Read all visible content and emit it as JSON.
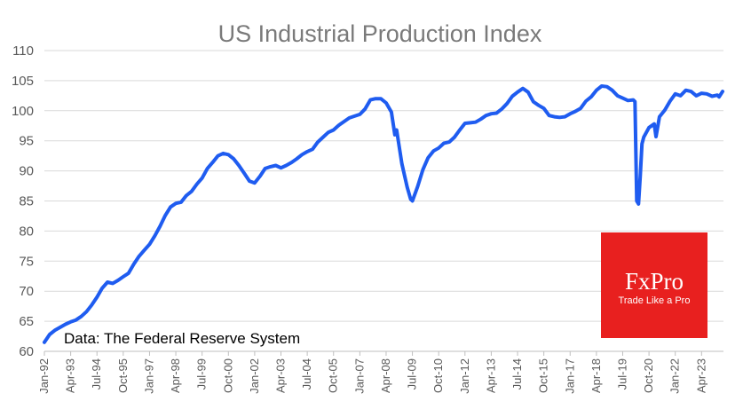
{
  "chart_data": {
    "type": "line",
    "title": "US Industrial Production Index",
    "xlabel": "",
    "ylabel": "",
    "ylim": [
      60,
      110
    ],
    "yticks": [
      60,
      65,
      70,
      75,
      80,
      85,
      90,
      95,
      100,
      105,
      110
    ],
    "xticks": [
      "Jan-92",
      "Apr-93",
      "Jul-94",
      "Oct-95",
      "Jan-97",
      "Apr-98",
      "Jul-99",
      "Oct-00",
      "Jan-02",
      "Apr-03",
      "Jul-04",
      "Oct-05",
      "Jan-07",
      "Apr-08",
      "Jul-09",
      "Oct-10",
      "Jan-12",
      "Apr-13",
      "Jul-14",
      "Oct-15",
      "Jan-17",
      "Apr-18",
      "Jul-19",
      "Oct-20",
      "Jan-22",
      "Apr-23"
    ],
    "grid": "horizontal",
    "line_color": "#1f5cf0",
    "source_note": "Data: The Federal Reserve System",
    "series": [
      {
        "x": [
          "1992-01",
          "1992-04",
          "1992-07",
          "1992-10",
          "1993-01",
          "1993-04",
          "1993-07",
          "1993-10",
          "1994-01",
          "1994-04",
          "1994-07",
          "1994-10",
          "1995-01",
          "1995-04",
          "1995-07",
          "1995-10",
          "1996-01",
          "1996-04",
          "1996-07",
          "1996-10",
          "1997-01",
          "1997-04",
          "1997-07",
          "1997-10",
          "1998-01",
          "1998-04",
          "1998-07",
          "1998-10",
          "1999-01",
          "1999-04",
          "1999-07",
          "1999-10",
          "2000-01",
          "2000-04",
          "2000-07",
          "2000-10",
          "2001-01",
          "2001-04",
          "2001-07",
          "2001-10",
          "2002-01",
          "2002-04",
          "2002-07",
          "2002-10",
          "2003-01",
          "2003-04",
          "2003-07",
          "2003-10",
          "2004-01",
          "2004-04",
          "2004-07",
          "2004-10",
          "2005-01",
          "2005-04",
          "2005-07",
          "2005-10",
          "2006-01",
          "2006-04",
          "2006-07",
          "2006-10",
          "2007-01",
          "2007-04",
          "2007-07",
          "2007-10",
          "2008-01",
          "2008-04",
          "2008-07",
          "2008-09",
          "2008-10",
          "2009-01",
          "2009-04",
          "2009-06",
          "2009-07",
          "2009-10",
          "2010-01",
          "2010-04",
          "2010-07",
          "2010-10",
          "2011-01",
          "2011-04",
          "2011-07",
          "2011-10",
          "2012-01",
          "2012-04",
          "2012-07",
          "2012-10",
          "2013-01",
          "2013-04",
          "2013-07",
          "2013-10",
          "2014-01",
          "2014-04",
          "2014-07",
          "2014-10",
          "2015-01",
          "2015-04",
          "2015-07",
          "2015-10",
          "2016-01",
          "2016-04",
          "2016-07",
          "2016-10",
          "2017-01",
          "2017-04",
          "2017-07",
          "2017-10",
          "2018-01",
          "2018-04",
          "2018-07",
          "2018-10",
          "2019-01",
          "2019-04",
          "2019-07",
          "2019-10",
          "2020-01",
          "2020-02",
          "2020-03",
          "2020-04",
          "2020-05",
          "2020-06",
          "2020-07",
          "2020-10",
          "2021-01",
          "2021-02",
          "2021-04",
          "2021-07",
          "2021-10",
          "2022-01",
          "2022-04",
          "2022-07",
          "2022-10",
          "2023-01",
          "2023-04",
          "2023-07",
          "2023-10",
          "2024-01",
          "2024-02",
          "2024-04"
        ],
        "y": [
          61.5,
          62.8,
          63.5,
          64.0,
          64.5,
          64.9,
          65.2,
          65.8,
          66.6,
          67.7,
          69.0,
          70.5,
          71.5,
          71.3,
          71.8,
          72.4,
          73.0,
          74.5,
          75.8,
          76.8,
          77.8,
          79.2,
          80.8,
          82.6,
          84.0,
          84.6,
          84.8,
          85.9,
          86.6,
          87.8,
          88.8,
          90.4,
          91.4,
          92.5,
          92.9,
          92.7,
          92.0,
          90.9,
          89.6,
          88.3,
          88.0,
          89.1,
          90.4,
          90.7,
          90.9,
          90.5,
          90.9,
          91.4,
          92.0,
          92.7,
          93.2,
          93.6,
          94.8,
          95.6,
          96.4,
          96.8,
          97.6,
          98.2,
          98.8,
          99.1,
          99.4,
          100.3,
          101.8,
          102.0,
          102.0,
          101.3,
          99.8,
          96.0,
          96.8,
          91.2,
          87.3,
          85.3,
          85.0,
          87.4,
          90.2,
          92.2,
          93.3,
          93.8,
          94.6,
          94.8,
          95.6,
          96.8,
          97.9,
          98.0,
          98.1,
          98.6,
          99.2,
          99.5,
          99.6,
          100.3,
          101.2,
          102.4,
          103.1,
          103.7,
          103.1,
          101.5,
          100.9,
          100.4,
          99.2,
          99.0,
          98.9,
          99.0,
          99.5,
          99.9,
          100.4,
          101.6,
          102.3,
          103.4,
          104.1,
          104.0,
          103.4,
          102.5,
          102.1,
          101.7,
          101.8,
          101.5,
          85.0,
          84.5,
          89.0,
          94.5,
          95.6,
          97.2,
          97.8,
          95.7,
          99.0,
          100.1,
          101.6,
          102.8,
          102.5,
          103.4,
          103.2,
          102.5,
          102.9,
          102.8,
          102.4,
          102.6,
          102.3,
          103.2
        ]
      }
    ]
  },
  "logo": {
    "brand": "FxPro",
    "tagline": "Trade Like a Pro",
    "color": "#e8201f"
  }
}
